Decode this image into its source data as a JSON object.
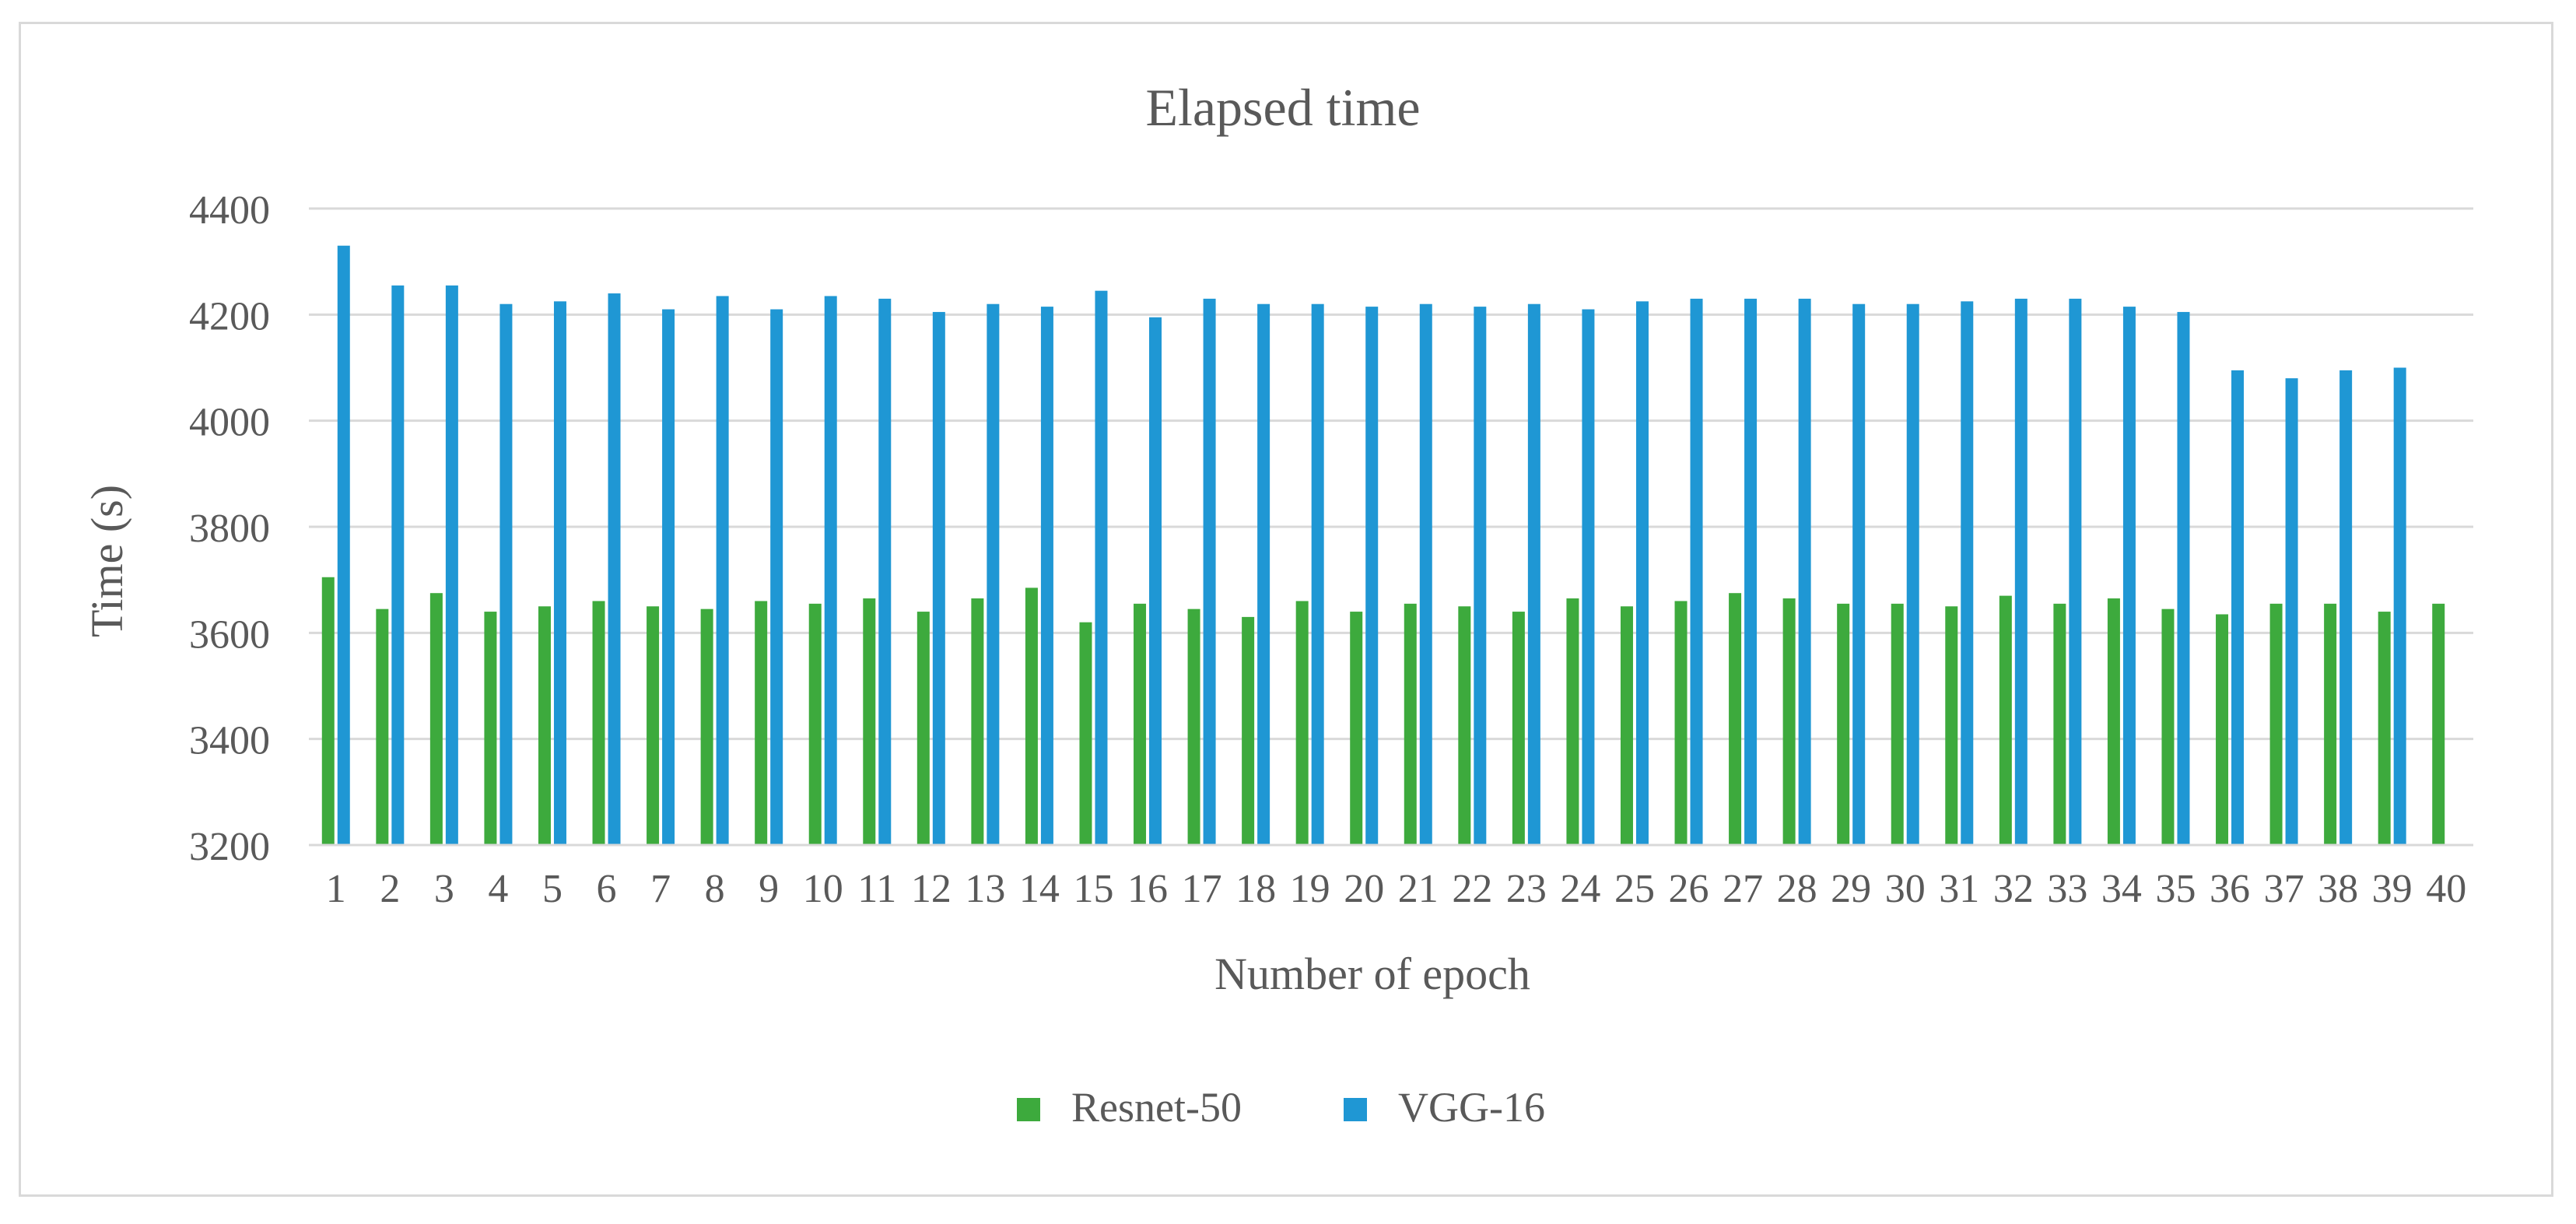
{
  "chart_data": {
    "type": "bar",
    "title": "Elapsed time",
    "xlabel": "Number of epoch",
    "ylabel": "Time (s)",
    "ylim": [
      3200,
      4400
    ],
    "yticks": [
      3200,
      3400,
      3600,
      3800,
      4000,
      4200,
      4400
    ],
    "grid": true,
    "legend_position": "bottom",
    "categories": [
      "1",
      "2",
      "3",
      "4",
      "5",
      "6",
      "7",
      "8",
      "9",
      "10",
      "11",
      "12",
      "13",
      "14",
      "15",
      "16",
      "17",
      "18",
      "19",
      "20",
      "21",
      "22",
      "23",
      "24",
      "25",
      "26",
      "27",
      "28",
      "29",
      "30",
      "31",
      "32",
      "33",
      "34",
      "35",
      "36",
      "37",
      "38",
      "39",
      "40"
    ],
    "series": [
      {
        "name": "Resnet-50",
        "color": "#3daa3d",
        "values": [
          3705,
          3645,
          3675,
          3640,
          3650,
          3660,
          3650,
          3645,
          3660,
          3655,
          3665,
          3640,
          3665,
          3685,
          3620,
          3655,
          3645,
          3630,
          3660,
          3640,
          3655,
          3650,
          3640,
          3665,
          3650,
          3660,
          3675,
          3665,
          3655,
          3655,
          3650,
          3670,
          3655,
          3665,
          3645,
          3635,
          3655,
          3655,
          3640,
          3655
        ]
      },
      {
        "name": "VGG-16",
        "color": "#1f97d4",
        "values": [
          4330,
          4255,
          4255,
          4220,
          4225,
          4240,
          4210,
          4235,
          4210,
          4235,
          4230,
          4205,
          4220,
          4215,
          4245,
          4195,
          4230,
          4220,
          4220,
          4215,
          4220,
          4215,
          4220,
          4210,
          4225,
          4230,
          4230,
          4230,
          4220,
          4220,
          4225,
          4230,
          4230,
          4215,
          4205,
          4095,
          4080,
          4095,
          4100,
          null
        ]
      }
    ]
  }
}
